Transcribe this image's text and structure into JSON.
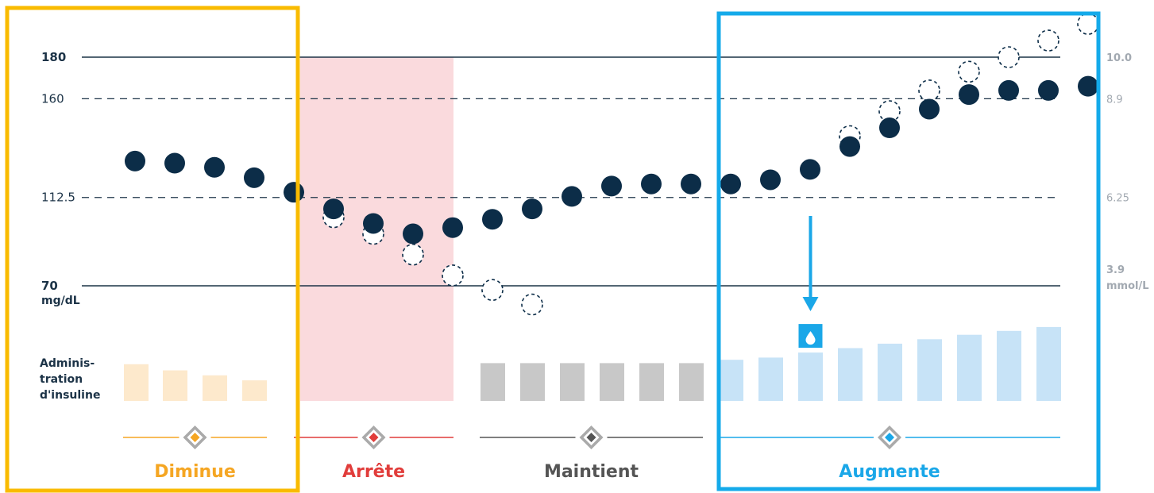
{
  "chart_data": {
    "type": "scatter",
    "left_axis": {
      "ticks": [
        {
          "value": 180,
          "label": "180",
          "bold": true,
          "line": "solid"
        },
        {
          "value": 160,
          "label": "160",
          "bold": false,
          "line": "dashed"
        },
        {
          "value": 112.5,
          "label": "112.5",
          "bold": false,
          "line": "dashed"
        },
        {
          "value": 70,
          "label": "70",
          "bold": true,
          "line": "solid"
        }
      ],
      "unit": "mg/dL"
    },
    "right_axis": {
      "ticks": [
        {
          "value": 180,
          "label": "10.0",
          "bold": true
        },
        {
          "value": 160,
          "label": "8.9",
          "bold": false
        },
        {
          "value": 112.5,
          "label": "6.25",
          "bold": false
        },
        {
          "value": 70,
          "label": "3.9",
          "bold": true
        }
      ],
      "unit": "mmol/L"
    },
    "series": [
      {
        "name": "",
        "style": "filled-dot",
        "values": [
          130,
          129,
          127,
          122,
          115,
          107,
          100,
          95,
          98,
          102,
          107,
          113,
          118,
          119,
          119,
          119,
          121,
          126,
          137,
          146,
          155,
          162,
          164,
          164,
          166
        ]
      },
      {
        "name": "",
        "style": "dashed-circle",
        "values": [
          130,
          129,
          127,
          122,
          115,
          103,
          95,
          85,
          75,
          68,
          61,
          113,
          118,
          119,
          119,
          119,
          121,
          126,
          142,
          154,
          164,
          173,
          180,
          188,
          196
        ]
      }
    ],
    "insulin": {
      "label_lines": [
        "Adminis-",
        "tration",
        "d'insuline"
      ],
      "bars": [
        {
          "level": 0.66,
          "color": "#fde9cc"
        },
        {
          "level": 0.55,
          "color": "#fde9cc"
        },
        {
          "level": 0.46,
          "color": "#fde9cc"
        },
        {
          "level": 0.37,
          "color": "#fde9cc"
        },
        {
          "level": 0.68,
          "color": "#c8c8c8"
        },
        {
          "level": 0.68,
          "color": "#c8c8c8"
        },
        {
          "level": 0.68,
          "color": "#c8c8c8"
        },
        {
          "level": 0.68,
          "color": "#c8c8c8"
        },
        {
          "level": 0.68,
          "color": "#c8c8c8"
        },
        {
          "level": 0.68,
          "color": "#c8c8c8"
        },
        {
          "level": 0.74,
          "color": "#c7e3f7"
        },
        {
          "level": 0.78,
          "color": "#c7e3f7"
        },
        {
          "level": 0.87,
          "color": "#c7e3f7"
        },
        {
          "level": 0.95,
          "color": "#c7e3f7"
        },
        {
          "level": 1.03,
          "color": "#c7e3f7"
        },
        {
          "level": 1.11,
          "color": "#c7e3f7"
        },
        {
          "level": 1.19,
          "color": "#c7e3f7"
        },
        {
          "level": 1.26,
          "color": "#c7e3f7"
        },
        {
          "level": 1.33,
          "color": "#c7e3f7"
        }
      ],
      "drop_icon": "water-drop-icon"
    },
    "categories": [
      {
        "label": "Diminue",
        "color": "#f5a623"
      },
      {
        "label": "Arrête",
        "color": "#e13d3b"
      },
      {
        "label": "Maintient",
        "color": "#555555"
      },
      {
        "label": "Augmente",
        "color": "#1aa7e8"
      }
    ],
    "colors": {
      "dot": "#0c2d48",
      "grid": "#1c3347",
      "stop_zone": "#fadadd",
      "frame_decrease": "#f9bb00",
      "frame_increase": "#14aaea",
      "arrow": "#1aa7e8",
      "diamond": "#aaaaaa"
    }
  }
}
